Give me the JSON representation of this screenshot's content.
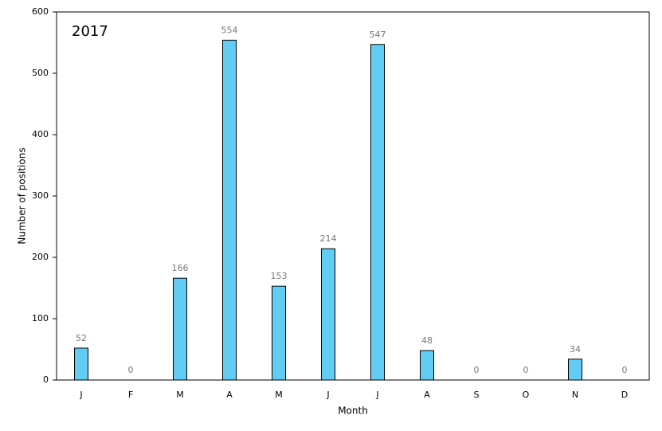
{
  "chart_data": {
    "type": "bar",
    "annotation": "2017",
    "x_label": "Month",
    "y_label": "Number of positions",
    "categories": [
      "J",
      "F",
      "M",
      "A",
      "M",
      "J",
      "J",
      "A",
      "S",
      "O",
      "N",
      "D"
    ],
    "values": [
      52,
      0,
      166,
      554,
      153,
      214,
      547,
      48,
      0,
      0,
      34,
      0
    ],
    "color": "#62cdf4",
    "ylim": [
      0,
      600
    ],
    "yticks": [
      0,
      100,
      200,
      300,
      400,
      500,
      600
    ],
    "grid": false
  }
}
